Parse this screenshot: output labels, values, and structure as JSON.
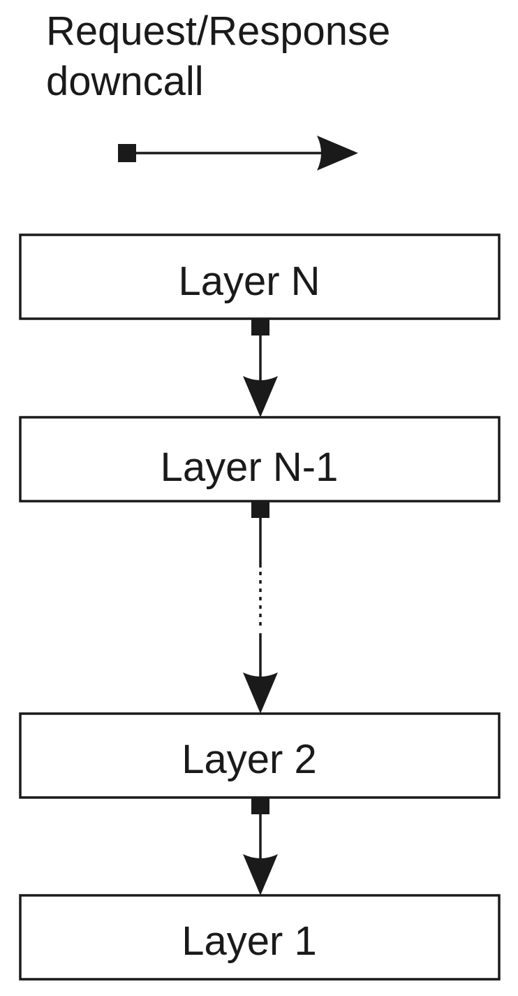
{
  "legend": {
    "line1": "Request/Response",
    "line2": "downcall"
  },
  "layers": [
    {
      "id": "layer-n",
      "label": "Layer N"
    },
    {
      "id": "layer-n-1",
      "label": "Layer N-1"
    },
    {
      "id": "layer-2",
      "label": "Layer 2"
    },
    {
      "id": "layer-1",
      "label": "Layer 1"
    }
  ],
  "connections": [
    {
      "from": "layer-n",
      "to": "layer-n-1",
      "style": "solid"
    },
    {
      "from": "layer-n-1",
      "to": "layer-2",
      "style": "solid-dotted-solid"
    },
    {
      "from": "layer-2",
      "to": "layer-1",
      "style": "solid"
    }
  ],
  "colors": {
    "ink": "#1a1a1a",
    "background": "#ffffff"
  }
}
